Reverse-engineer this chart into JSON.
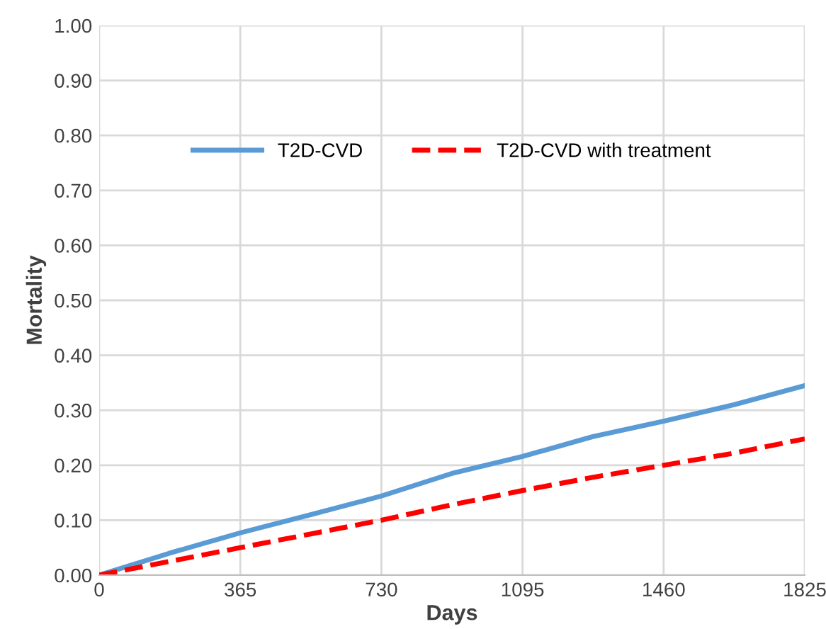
{
  "chart_data": {
    "type": "line",
    "xlabel": "Days",
    "ylabel": "Mortality",
    "xlim": [
      0,
      1825
    ],
    "xticks": [
      0,
      365,
      730,
      1095,
      1460,
      1825
    ],
    "ylim": [
      0,
      1
    ],
    "yticks": [
      {
        "value": 0,
        "label": "0.00"
      },
      {
        "value": 0.1,
        "label": "0.10"
      },
      {
        "value": 0.2,
        "label": "0.20"
      },
      {
        "value": 0.3,
        "label": "0.30"
      },
      {
        "value": 0.4,
        "label": "0.40"
      },
      {
        "value": 0.5,
        "label": "0.50"
      },
      {
        "value": 0.6,
        "label": "0.60"
      },
      {
        "value": 0.7,
        "label": "0.70"
      },
      {
        "value": 0.8,
        "label": "0.80"
      },
      {
        "value": 0.9,
        "label": "0.90"
      },
      {
        "value": 1,
        "label": "1.00"
      }
    ],
    "x": [
      0,
      182,
      365,
      547,
      730,
      912,
      1095,
      1277,
      1460,
      1642,
      1825
    ],
    "grid": true,
    "legend": "top",
    "series": [
      {
        "name": "T2D-CVD",
        "color": "#5b9bd5",
        "line_style": "solid",
        "values": [
          0,
          0.04,
          0.077,
          0.11,
          0.144,
          0.185,
          0.216,
          0.252,
          0.28,
          0.31,
          0.345
        ]
      },
      {
        "name": "T2D-CVD with treatment",
        "color": "#ff0000",
        "line_style": "dashed",
        "values": [
          0,
          0.025,
          0.05,
          0.075,
          0.1,
          0.128,
          0.154,
          0.178,
          0.2,
          0.222,
          0.248
        ]
      }
    ]
  }
}
